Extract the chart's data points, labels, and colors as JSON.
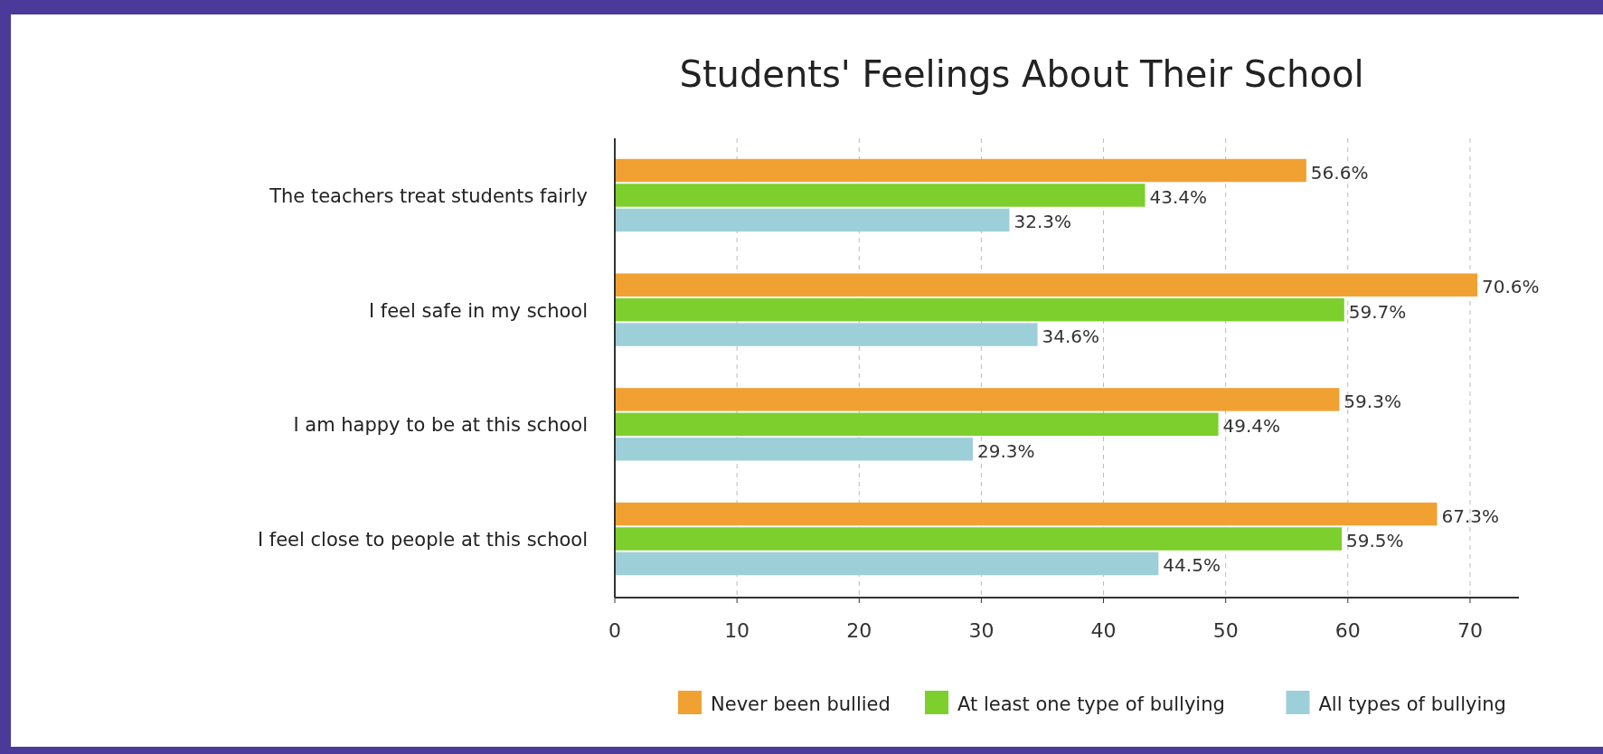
{
  "chart_data": {
    "type": "bar",
    "orientation": "horizontal",
    "title": "Students' Feelings About Their School",
    "categories": [
      "The teachers treat students fairly",
      "I feel safe in my school",
      "I am happy to be at this school",
      "I feel close to people at this school"
    ],
    "series": [
      {
        "name": "Never been bullied",
        "color": "#f0a132",
        "values": [
          56.6,
          70.6,
          59.3,
          67.3
        ],
        "value_labels": [
          "56.6%",
          "70.6%",
          "59.3%",
          "67.3%"
        ]
      },
      {
        "name": "At least one type of bullying",
        "color": "#7ccf2c",
        "values": [
          43.4,
          59.7,
          49.4,
          59.5
        ],
        "value_labels": [
          "43.4%",
          "59.7%",
          "49.4%",
          "59.5%"
        ]
      },
      {
        "name": "All types of bullying",
        "color": "#9dcfd9",
        "values": [
          32.3,
          34.6,
          29.3,
          44.5
        ],
        "value_labels": [
          "32.3%",
          "34.6%",
          "29.3%",
          "44.5%"
        ]
      }
    ],
    "xlim": [
      0,
      74
    ],
    "xticks": [
      0,
      10,
      20,
      30,
      40,
      50,
      60,
      70
    ],
    "grid": "x",
    "legend": "bottom"
  }
}
